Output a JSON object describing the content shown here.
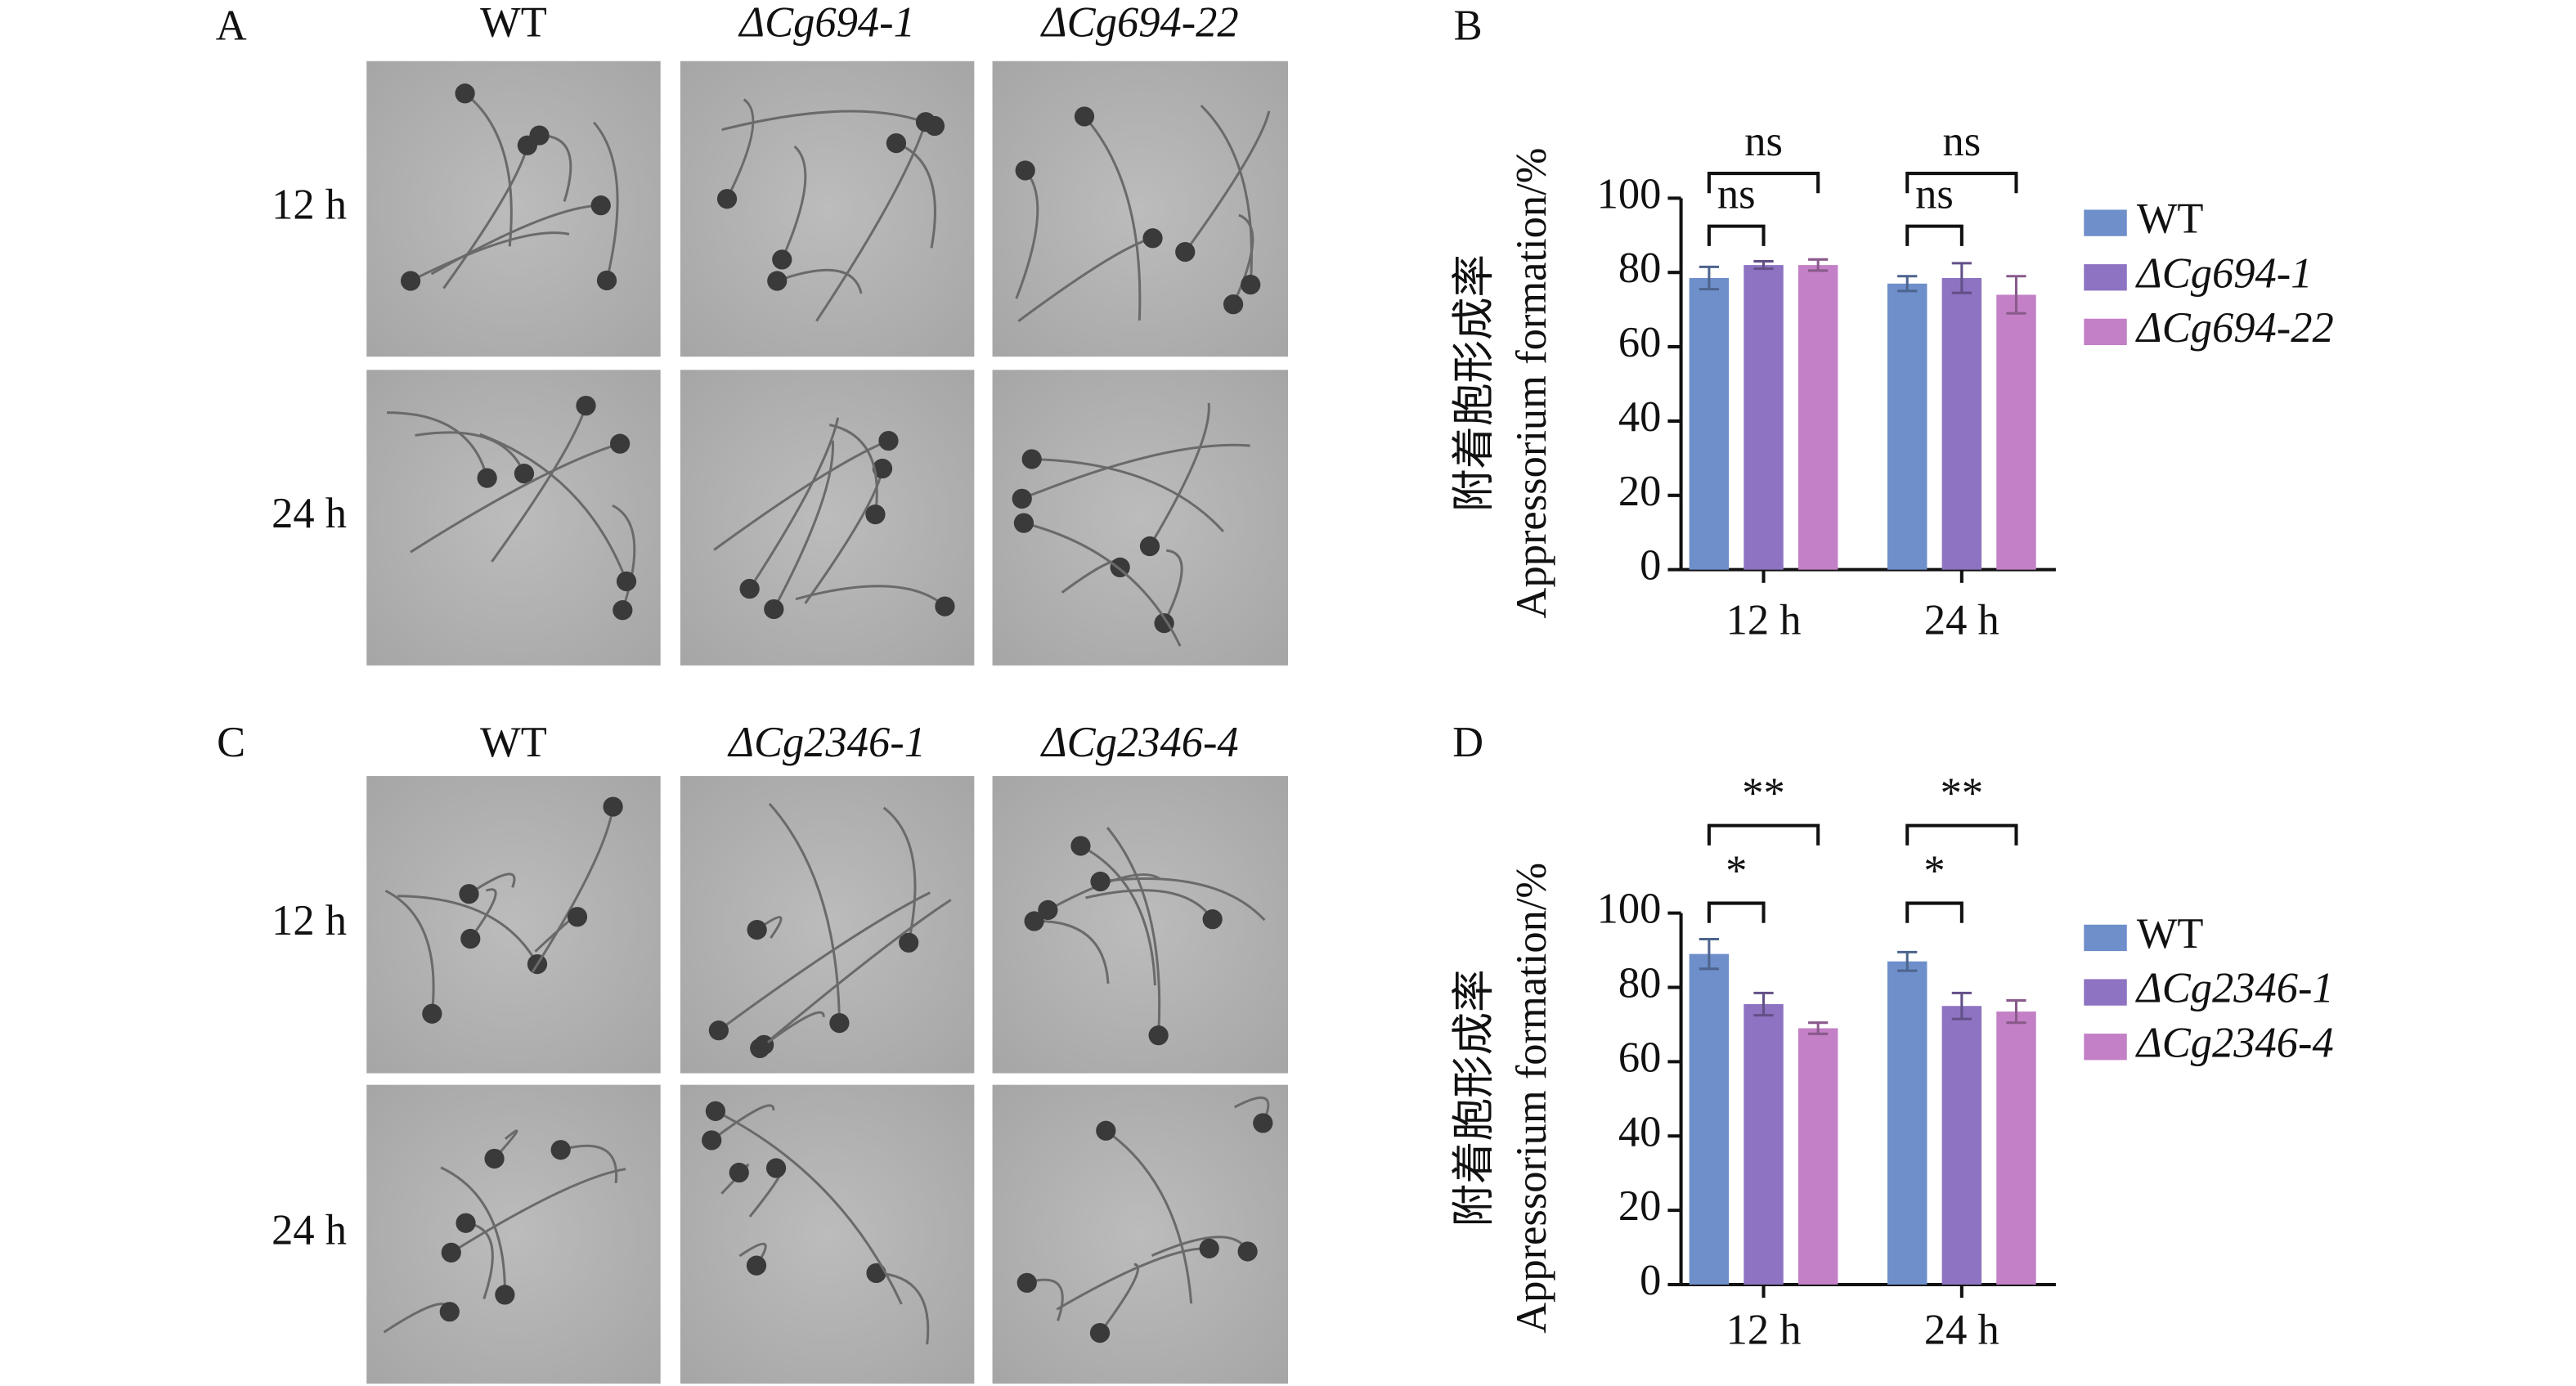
{
  "panels": {
    "letters": [
      "A",
      "B",
      "C",
      "D"
    ],
    "A": {
      "columns": [
        "WT",
        "ΔCg694-1",
        "ΔCg694-22"
      ],
      "rows": [
        "12 h",
        "24 h"
      ]
    },
    "C": {
      "columns": [
        "WT",
        "ΔCg2346-1",
        "ΔCg2346-4"
      ],
      "rows": [
        "12 h",
        "24 h"
      ]
    }
  },
  "chart_data": [
    {
      "type": "bar",
      "ylabel": [
        "附着胞形成率",
        "Appressorium formation/%"
      ],
      "categories": [
        "12 h",
        "24 h"
      ],
      "series": [
        {
          "name": "WT",
          "color": "#6e8fca",
          "values": [
            78.5,
            77
          ],
          "errors": [
            3,
            2
          ]
        },
        {
          "name": "ΔCg694-1",
          "color": "#8d73c1",
          "values": [
            82,
            78.5
          ],
          "errors": [
            1,
            4
          ]
        },
        {
          "name": "ΔCg694-22",
          "color": "#c380c6",
          "values": [
            82,
            74
          ],
          "errors": [
            1.5,
            5
          ]
        }
      ],
      "annotations": [
        [
          "ns",
          "ns"
        ],
        [
          "ns",
          "ns"
        ]
      ],
      "ylim": [
        0,
        100
      ],
      "yticks": [
        0,
        20,
        40,
        60,
        80,
        100
      ]
    },
    {
      "type": "bar",
      "ylabel": [
        "附着胞形成率",
        "Appressorium formation/%"
      ],
      "categories": [
        "12 h",
        "24 h"
      ],
      "series": [
        {
          "name": "WT",
          "color": "#6e8fca",
          "values": [
            89,
            87
          ],
          "errors": [
            4,
            2.5
          ]
        },
        {
          "name": "ΔCg2346-1",
          "color": "#8d73c1",
          "values": [
            75.5,
            75
          ],
          "errors": [
            3,
            3.5
          ]
        },
        {
          "name": "ΔCg2346-4",
          "color": "#c380c6",
          "values": [
            69,
            73.5
          ],
          "errors": [
            1.5,
            3
          ]
        }
      ],
      "annotations": [
        [
          "*",
          "**"
        ],
        [
          "*",
          "**"
        ]
      ],
      "ylim": [
        0,
        100
      ],
      "yticks": [
        0,
        20,
        40,
        60,
        80,
        100
      ]
    }
  ]
}
